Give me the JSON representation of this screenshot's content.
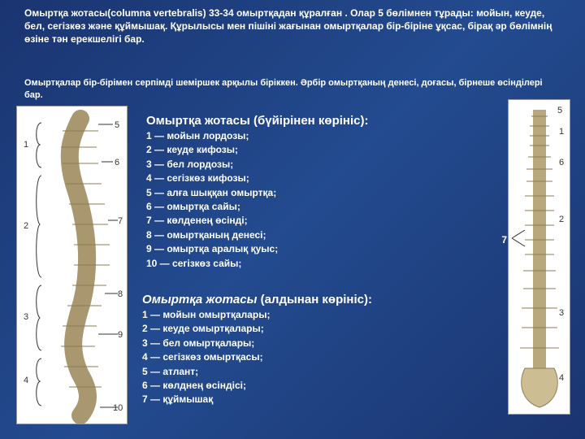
{
  "intro": {
    "p1_bold": "Омыртқа жотасы(columna vertebralis) ",
    "p1_rest": "33-34 омыртқадан құралған . Олар 5 бөлімнен тұрады: мойын, кеуде, бел, сегізкөз және құймышақ. Құрылысы мен пішіні жағынан омыртқалар бір-біріне ұқсас, бірақ әр бөлімнің өзіне тән ерекшелігі бар.",
    "p2": "Омыртқалар бір-бірімен серпімді шеміршек арқылы біріккен. Әрбір омыртқаның денесі, доғасы, бірнеше өсінділері бар."
  },
  "section1": {
    "title": "Омыртқа жотасы (бүйірінен көрініс):",
    "items": [
      "1 — мойын лордозы;",
      "2 — кеуде кифозы;",
      "3 — бел лордозы;",
      "4 — сегізкөз кифозы;",
      "5 — алға шыққан омыртқа;",
      "6 — омыртқа сайы;",
      "7 — көлденең өсінді;",
      "8 — омыртқаның денесі;",
      "9 — омыртқа аралық қуыс;",
      "10 — сегізкөз сайы;"
    ]
  },
  "section2": {
    "title_italic": "Омыртқа жотасы",
    "title_rest": " (алдынан көрініс):",
    "items": [
      "1 — мойын омыртқалары;",
      "2 — кеуде омыртқалары;",
      "3 — бел омыртқалары;",
      "4 — сегізкөз омыртқасы;",
      "5 — атлант;",
      "6 — көлднең өсіндісі;",
      "7 — құймышақ"
    ]
  },
  "left_labels": [
    "1",
    "2",
    "3",
    "4",
    "5",
    "6",
    "7",
    "8",
    "9",
    "10"
  ],
  "right_labels": [
    "5",
    "1",
    "6",
    "2",
    "7",
    "3",
    "4"
  ]
}
